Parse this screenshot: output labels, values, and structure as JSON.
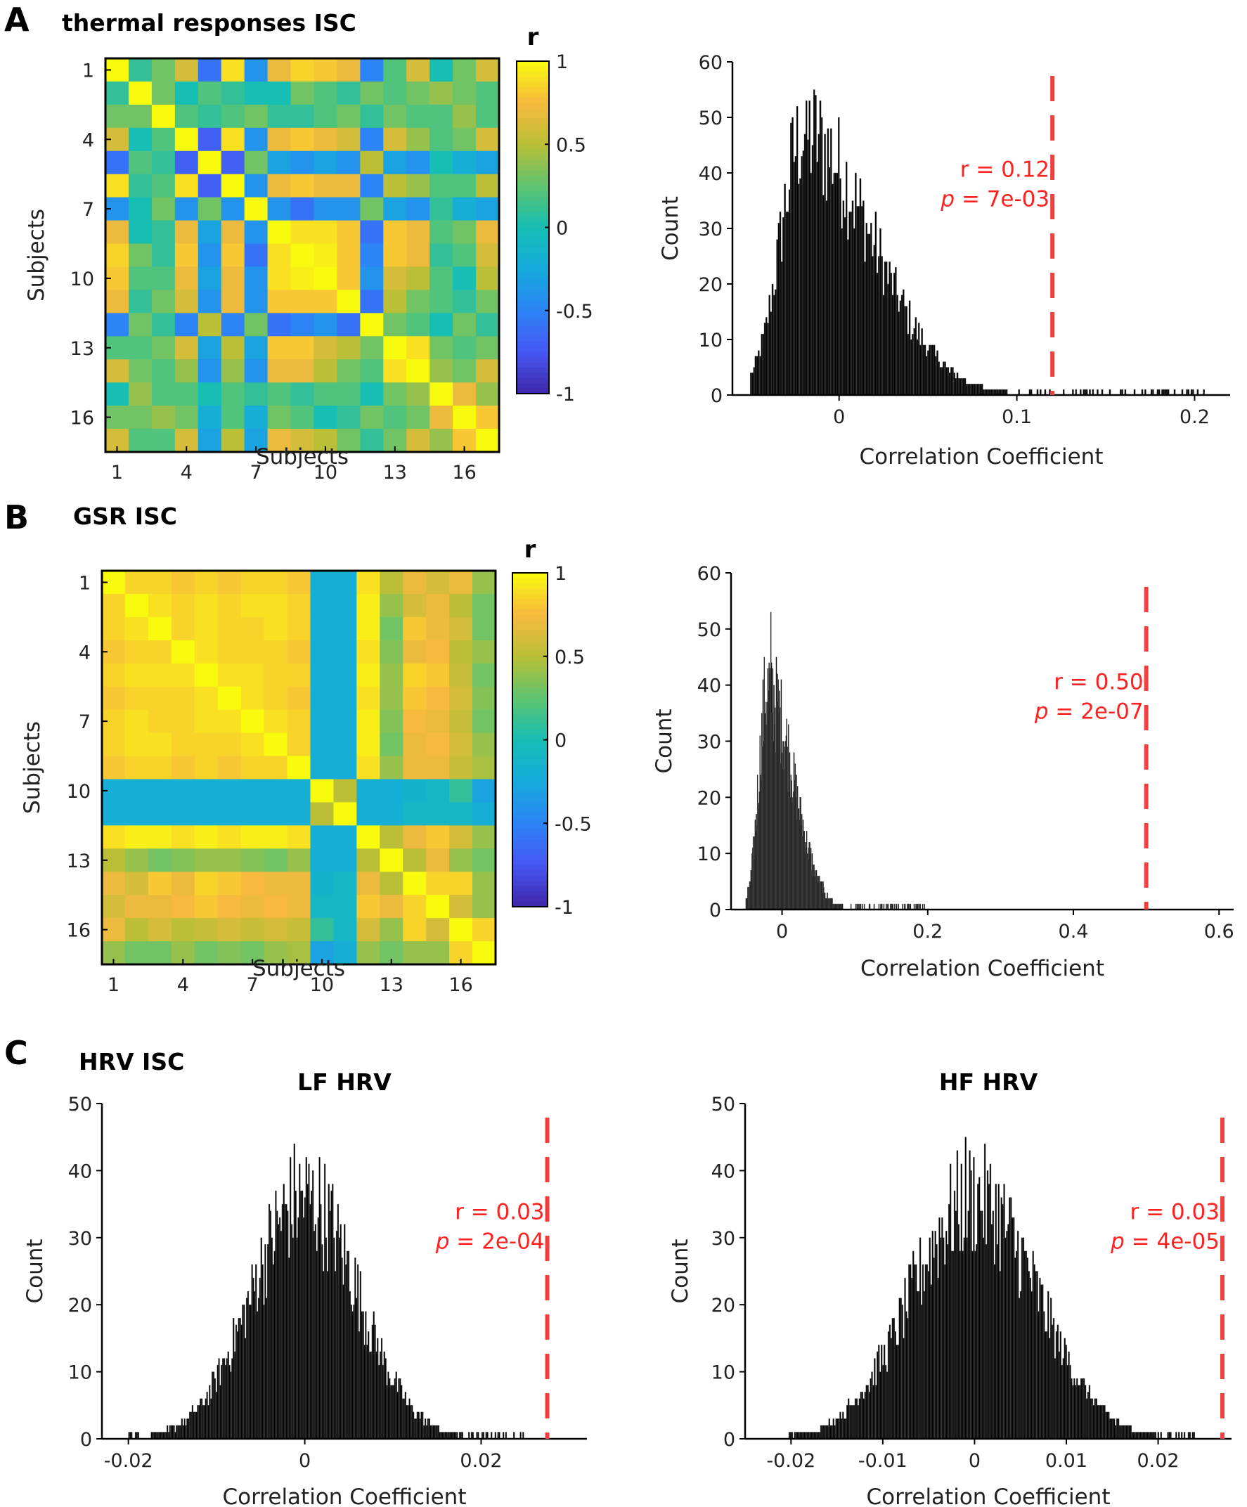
{
  "panels": {
    "A": {
      "label": "A",
      "title": "thermal responses ISC"
    },
    "B": {
      "label": "B",
      "title": "GSR ISC"
    },
    "C": {
      "label": "C",
      "title": "HRV ISC"
    }
  },
  "chart_data": [
    {
      "id": "A-matrix",
      "type": "heatmap",
      "title": "thermal responses ISC",
      "xlabel": "Subjects",
      "ylabel": "Subjects",
      "n": 17,
      "tick_labels": [
        "1",
        "4",
        "7",
        "10",
        "13",
        "16"
      ],
      "tick_indices": [
        1,
        4,
        7,
        10,
        13,
        16
      ],
      "colorbar": {
        "label": "r",
        "ticks": [
          1,
          0.5,
          0,
          -0.5,
          -1
        ],
        "tick_labels": [
          "1",
          "0.5",
          "0",
          "-0.5",
          "-1"
        ],
        "range": [
          -1,
          1
        ]
      },
      "values": [
        [
          1.0,
          0.1,
          0.3,
          0.6,
          -0.6,
          0.9,
          -0.4,
          0.7,
          0.85,
          0.8,
          0.7,
          -0.5,
          0.2,
          0.6,
          0.0,
          0.3,
          0.6
        ],
        [
          0.1,
          1.0,
          0.3,
          0.0,
          0.2,
          0.1,
          0.0,
          0.0,
          0.3,
          0.2,
          0.1,
          0.3,
          0.2,
          0.3,
          0.4,
          0.3,
          0.2
        ],
        [
          0.3,
          0.3,
          1.0,
          0.2,
          0.1,
          0.2,
          0.3,
          0.1,
          0.1,
          0.2,
          0.3,
          0.1,
          0.3,
          0.2,
          0.2,
          0.4,
          0.2
        ],
        [
          0.6,
          0.0,
          0.2,
          1.0,
          -0.7,
          0.9,
          -0.4,
          0.7,
          0.8,
          0.7,
          0.6,
          -0.5,
          0.6,
          0.4,
          0.2,
          0.3,
          0.6
        ],
        [
          -0.6,
          0.2,
          0.1,
          -0.7,
          1.0,
          -0.7,
          0.3,
          -0.3,
          -0.4,
          -0.3,
          -0.4,
          0.5,
          -0.3,
          -0.4,
          0.0,
          -0.2,
          -0.3
        ],
        [
          0.9,
          0.1,
          0.2,
          0.9,
          -0.7,
          1.0,
          -0.4,
          0.7,
          0.8,
          0.7,
          0.7,
          -0.5,
          0.5,
          0.4,
          0.2,
          0.2,
          0.5
        ],
        [
          -0.4,
          0.0,
          0.3,
          -0.4,
          0.3,
          -0.4,
          1.0,
          -0.4,
          -0.6,
          -0.4,
          -0.4,
          0.3,
          -0.3,
          -0.4,
          0.1,
          -0.2,
          -0.3
        ],
        [
          0.7,
          0.0,
          0.1,
          0.7,
          -0.3,
          0.7,
          -0.4,
          1.0,
          0.9,
          0.9,
          0.8,
          -0.6,
          0.8,
          0.7,
          0.2,
          0.3,
          0.7
        ],
        [
          0.85,
          0.3,
          0.1,
          0.8,
          -0.4,
          0.8,
          -0.6,
          0.9,
          1.0,
          0.95,
          0.8,
          -0.5,
          0.8,
          0.7,
          0.1,
          0.2,
          0.6
        ],
        [
          0.8,
          0.2,
          0.2,
          0.7,
          -0.3,
          0.7,
          -0.4,
          0.9,
          0.95,
          1.0,
          0.8,
          -0.4,
          0.6,
          0.5,
          0.2,
          0.0,
          0.5
        ],
        [
          0.7,
          0.1,
          0.3,
          0.6,
          -0.4,
          0.7,
          -0.4,
          0.8,
          0.8,
          0.8,
          1.0,
          -0.6,
          0.5,
          0.3,
          0.2,
          0.1,
          0.3
        ],
        [
          -0.5,
          0.3,
          0.1,
          -0.5,
          0.5,
          -0.5,
          0.3,
          -0.6,
          -0.5,
          -0.4,
          -0.6,
          1.0,
          0.3,
          0.2,
          0.0,
          0.3,
          0.1
        ],
        [
          0.2,
          0.2,
          0.3,
          0.6,
          -0.3,
          0.5,
          -0.3,
          0.8,
          0.8,
          0.6,
          0.5,
          0.3,
          1.0,
          0.9,
          0.3,
          0.2,
          0.3
        ],
        [
          0.6,
          0.3,
          0.2,
          0.4,
          -0.4,
          0.4,
          -0.4,
          0.7,
          0.7,
          0.5,
          0.3,
          0.2,
          0.9,
          1.0,
          0.4,
          0.3,
          0.6
        ],
        [
          0.0,
          0.4,
          0.2,
          0.2,
          0.0,
          0.2,
          0.1,
          0.2,
          0.1,
          0.2,
          0.2,
          0.0,
          0.3,
          0.4,
          1.0,
          0.7,
          0.4
        ],
        [
          0.3,
          0.3,
          0.4,
          0.3,
          -0.2,
          0.2,
          -0.2,
          0.3,
          0.2,
          0.0,
          0.1,
          0.3,
          0.2,
          0.3,
          0.7,
          1.0,
          0.8
        ],
        [
          0.6,
          0.2,
          0.2,
          0.6,
          -0.3,
          0.5,
          -0.3,
          0.7,
          0.6,
          0.5,
          0.3,
          0.1,
          0.3,
          0.6,
          0.4,
          0.8,
          1.0
        ]
      ]
    },
    {
      "id": "A-hist",
      "type": "bar",
      "title": "",
      "xlabel": "Correlation Coefficient",
      "ylabel": "Count",
      "xlim": [
        -0.06,
        0.22
      ],
      "ylim": [
        0,
        60
      ],
      "xticks": [
        0,
        0.1,
        0.2
      ],
      "xtick_labels": [
        "0",
        "0.1",
        "0.2"
      ],
      "yticks": [
        0,
        10,
        20,
        30,
        40,
        50,
        60
      ],
      "distribution": {
        "shape": "skewed",
        "peak_x": -0.02,
        "peak_count": 47,
        "sd_left": 0.013,
        "sd_right": 0.038,
        "data_min": -0.05,
        "data_max": 0.21,
        "max_spike": 53
      },
      "observed_r": 0.12,
      "annotation": {
        "r_text": "r = 0.12",
        "p_prefix": "p",
        "p_text": " = 7e-03"
      }
    },
    {
      "id": "B-matrix",
      "type": "heatmap",
      "title": "GSR ISC",
      "xlabel": "Subjects",
      "ylabel": "Subjects",
      "n": 17,
      "tick_labels": [
        "1",
        "4",
        "7",
        "10",
        "13",
        "16"
      ],
      "tick_indices": [
        1,
        4,
        7,
        10,
        13,
        16
      ],
      "colorbar": {
        "label": "r",
        "ticks": [
          1,
          0.5,
          0,
          -0.5,
          -1
        ],
        "tick_labels": [
          "1",
          "0.5",
          "0",
          "-0.5",
          "-1"
        ],
        "range": [
          -1,
          1
        ]
      },
      "values": [
        [
          1.0,
          0.85,
          0.85,
          0.8,
          0.85,
          0.8,
          0.85,
          0.85,
          0.8,
          -0.2,
          -0.2,
          0.9,
          0.5,
          0.7,
          0.6,
          0.7,
          0.4
        ],
        [
          0.85,
          1.0,
          0.9,
          0.85,
          0.9,
          0.85,
          0.9,
          0.9,
          0.85,
          -0.2,
          -0.2,
          0.95,
          0.4,
          0.6,
          0.7,
          0.5,
          0.3
        ],
        [
          0.85,
          0.9,
          1.0,
          0.85,
          0.9,
          0.85,
          0.85,
          0.9,
          0.85,
          -0.2,
          -0.2,
          0.95,
          0.3,
          0.8,
          0.7,
          0.6,
          0.3
        ],
        [
          0.8,
          0.85,
          0.85,
          1.0,
          0.9,
          0.85,
          0.85,
          0.85,
          0.8,
          -0.2,
          -0.2,
          0.9,
          0.35,
          0.7,
          0.75,
          0.5,
          0.4
        ],
        [
          0.85,
          0.9,
          0.9,
          0.9,
          1.0,
          0.9,
          0.9,
          0.85,
          0.85,
          -0.2,
          -0.2,
          0.95,
          0.4,
          0.85,
          0.8,
          0.55,
          0.3
        ],
        [
          0.8,
          0.85,
          0.85,
          0.85,
          0.9,
          1.0,
          0.9,
          0.85,
          0.8,
          -0.2,
          -0.2,
          0.9,
          0.4,
          0.8,
          0.75,
          0.6,
          0.35
        ],
        [
          0.85,
          0.9,
          0.85,
          0.85,
          0.9,
          0.9,
          1.0,
          0.9,
          0.85,
          -0.2,
          -0.2,
          0.95,
          0.35,
          0.75,
          0.7,
          0.55,
          0.3
        ],
        [
          0.85,
          0.9,
          0.9,
          0.85,
          0.85,
          0.85,
          0.9,
          1.0,
          0.85,
          -0.2,
          -0.2,
          0.95,
          0.3,
          0.7,
          0.75,
          0.6,
          0.4
        ],
        [
          0.8,
          0.85,
          0.85,
          0.8,
          0.85,
          0.8,
          0.85,
          0.85,
          1.0,
          -0.2,
          -0.2,
          0.9,
          0.4,
          0.7,
          0.7,
          0.55,
          0.45
        ],
        [
          -0.2,
          -0.2,
          -0.2,
          -0.2,
          -0.2,
          -0.2,
          -0.2,
          -0.2,
          -0.2,
          1.0,
          0.5,
          -0.2,
          -0.2,
          -0.15,
          -0.1,
          0.1,
          -0.3
        ],
        [
          -0.2,
          -0.2,
          -0.2,
          -0.2,
          -0.2,
          -0.2,
          -0.2,
          -0.2,
          -0.2,
          0.5,
          1.0,
          -0.2,
          -0.2,
          -0.1,
          -0.1,
          -0.1,
          -0.2
        ],
        [
          0.9,
          0.95,
          0.95,
          0.9,
          0.95,
          0.9,
          0.95,
          0.95,
          0.9,
          -0.2,
          -0.2,
          1.0,
          0.5,
          0.7,
          0.8,
          0.6,
          0.4
        ],
        [
          0.5,
          0.4,
          0.3,
          0.35,
          0.4,
          0.4,
          0.35,
          0.3,
          0.4,
          -0.2,
          -0.2,
          0.5,
          1.0,
          0.5,
          0.7,
          0.4,
          0.3
        ],
        [
          0.7,
          0.6,
          0.8,
          0.7,
          0.85,
          0.8,
          0.75,
          0.7,
          0.7,
          -0.15,
          -0.1,
          0.7,
          0.5,
          1.0,
          0.85,
          0.85,
          0.4
        ],
        [
          0.6,
          0.7,
          0.7,
          0.75,
          0.8,
          0.75,
          0.7,
          0.75,
          0.7,
          -0.1,
          -0.1,
          0.8,
          0.7,
          0.85,
          1.0,
          0.6,
          0.4
        ],
        [
          0.7,
          0.5,
          0.6,
          0.5,
          0.55,
          0.6,
          0.55,
          0.6,
          0.55,
          0.1,
          -0.1,
          0.6,
          0.4,
          0.85,
          0.6,
          1.0,
          0.85
        ],
        [
          0.4,
          0.3,
          0.3,
          0.4,
          0.3,
          0.35,
          0.3,
          0.4,
          0.45,
          -0.3,
          -0.2,
          0.4,
          0.3,
          0.4,
          0.4,
          0.85,
          1.0
        ]
      ]
    },
    {
      "id": "B-hist",
      "type": "bar",
      "title": "",
      "xlabel": "Correlation Coefficient",
      "ylabel": "Count",
      "xlim": [
        -0.07,
        0.62
      ],
      "ylim": [
        0,
        60
      ],
      "xticks": [
        0,
        0.2,
        0.4,
        0.6
      ],
      "xtick_labels": [
        "0",
        "0.2",
        "0.4",
        "0.6"
      ],
      "yticks": [
        0,
        10,
        20,
        30,
        40,
        50,
        60
      ],
      "distribution": {
        "shape": "skewed",
        "peak_x": -0.02,
        "peak_count": 39,
        "sd_left": 0.012,
        "sd_right": 0.035,
        "data_min": -0.05,
        "data_max": 0.2,
        "max_spike": 53
      },
      "observed_r": 0.5,
      "annotation": {
        "r_text": "r = 0.50",
        "p_prefix": "p",
        "p_text": " = 2e-07"
      }
    },
    {
      "id": "C-LF",
      "type": "bar",
      "title": "LF HRV",
      "xlabel": "Correlation Coefficient",
      "ylabel": "Count",
      "xlim": [
        -0.023,
        0.032
      ],
      "ylim": [
        0,
        50
      ],
      "xticks": [
        -0.02,
        0,
        0.02
      ],
      "xtick_labels": [
        "-0.02",
        "0",
        "0.02"
      ],
      "yticks": [
        0,
        10,
        20,
        30,
        40,
        50
      ],
      "distribution": {
        "shape": "normal",
        "peak_x": 0.0,
        "peak_count": 36,
        "sd_left": 0.006,
        "sd_right": 0.006,
        "data_min": -0.02,
        "data_max": 0.025,
        "max_spike": 44
      },
      "observed_r": 0.0275,
      "annotation": {
        "r_text": "r = 0.03",
        "p_prefix": "p",
        "p_text": " = 2e-04"
      }
    },
    {
      "id": "C-HF",
      "type": "bar",
      "title": "HF HRV",
      "xlabel": "Correlation Coefficient",
      "ylabel": "Count",
      "xlim": [
        -0.025,
        0.028
      ],
      "ylim": [
        0,
        50
      ],
      "xticks": [
        -0.02,
        -0.01,
        0,
        0.01,
        0.02
      ],
      "xtick_labels": [
        "-0.02",
        "-0.01",
        "0",
        "0.01",
        "0.02"
      ],
      "yticks": [
        0,
        10,
        20,
        30,
        40,
        50
      ],
      "distribution": {
        "shape": "normal",
        "peak_x": 0.0,
        "peak_count": 36,
        "sd_left": 0.0068,
        "sd_right": 0.0068,
        "data_min": -0.021,
        "data_max": 0.024,
        "max_spike": 45
      },
      "observed_r": 0.027,
      "annotation": {
        "r_text": "r = 0.03",
        "p_prefix": "p",
        "p_text": " = 4e-05"
      }
    }
  ]
}
